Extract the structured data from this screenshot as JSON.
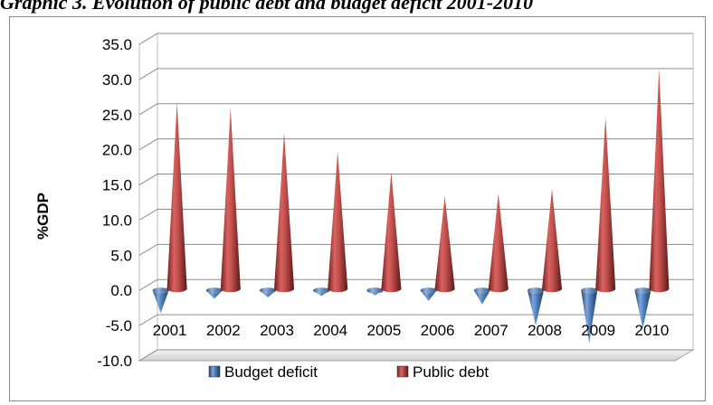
{
  "caption": "Graphic 3. Evolution of public debt and budget deficit 2001-2010",
  "chart_data": {
    "type": "bar",
    "style": "3d-cone",
    "categories": [
      "2001",
      "2002",
      "2003",
      "2004",
      "2005",
      "2006",
      "2007",
      "2008",
      "2009",
      "2010"
    ],
    "series": [
      {
        "name": "Budget deficit",
        "color": "#4f81bd",
        "values": [
          -3.2,
          -1.2,
          -1.0,
          -0.8,
          -0.7,
          -1.5,
          -2.0,
          -5.0,
          -7.5,
          -5.4
        ]
      },
      {
        "name": "Public debt",
        "color": "#c0504d",
        "values": [
          25.7,
          24.9,
          21.4,
          18.7,
          15.8,
          12.4,
          12.7,
          13.4,
          23.6,
          30.5
        ]
      }
    ],
    "xlabel": "",
    "ylabel": "%GDP",
    "ylim": [
      -10,
      35
    ],
    "yticks": [
      "-10.0",
      "-5.0",
      "0.0",
      "5.0",
      "10.0",
      "15.0",
      "20.0",
      "25.0",
      "30.0",
      "35.0"
    ],
    "grid": true,
    "legend": "bottom"
  }
}
